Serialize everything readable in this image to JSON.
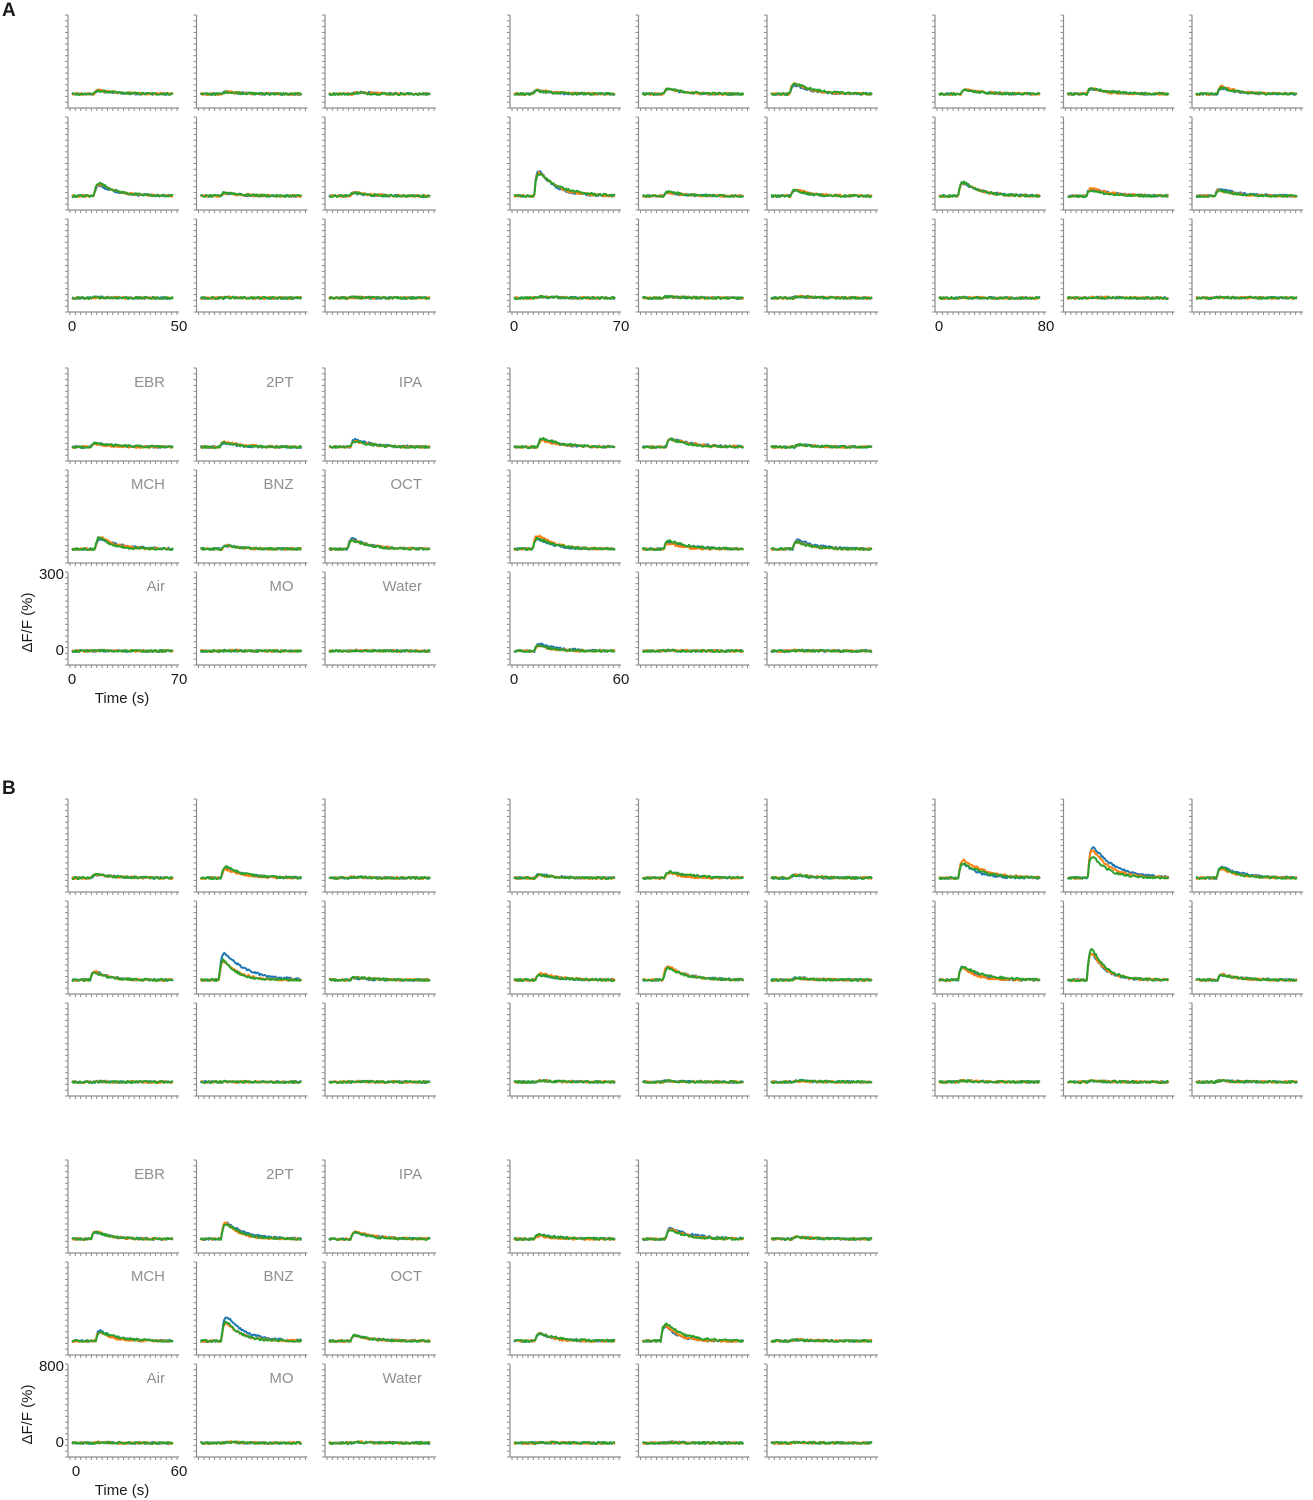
{
  "panels": [
    {
      "label": "A",
      "ylabel": "ΔF/F (%)",
      "yticks": [
        "0",
        "300"
      ],
      "ylim": [
        0,
        300
      ],
      "xlabel": "Time (s)",
      "groups": [
        {
          "xticks": [
            "0",
            "50"
          ]
        },
        {
          "xticks": [
            "0",
            "70"
          ]
        },
        {
          "xticks": [
            "0",
            "80"
          ]
        },
        {
          "xticks": [
            "0",
            "70"
          ]
        },
        {
          "xticks": [
            "0",
            "60"
          ]
        }
      ]
    },
    {
      "label": "B",
      "ylabel": "ΔF/F (%)",
      "yticks": [
        "0",
        "800"
      ],
      "ylim": [
        0,
        800
      ],
      "xlabel": "Time (s)",
      "groups": [
        {
          "xticks": []
        },
        {
          "xticks": []
        },
        {
          "xticks": []
        },
        {
          "xticks": [
            "0",
            "60"
          ]
        },
        {
          "xticks": []
        }
      ]
    }
  ],
  "odors": [
    [
      "EBR",
      "2PT",
      "IPA"
    ],
    [
      "MCH",
      "BNZ",
      "OCT"
    ],
    [
      "Air",
      "MO",
      "Water"
    ]
  ],
  "colors": {
    "trial_1": "#1f77b4",
    "trial_2": "#ff7f0e",
    "trial_3": "#2ca02c",
    "axis": "#8c8c8c",
    "odor_text": "#8f8f8f"
  },
  "chart_data": {
    "type": "line",
    "note_series": "three overlaid trials per odor (blue, orange, green)",
    "A": {
      "group_1": {
        "peaks": [
          [
            20,
            15,
            8
          ],
          [
            75,
            20,
            20
          ],
          [
            4,
            4,
            4
          ]
        ]
      },
      "group_2": {
        "peaks": [
          [
            22,
            30,
            60
          ],
          [
            150,
            25,
            35
          ],
          [
            8,
            8,
            10
          ]
        ]
      },
      "group_3": {
        "peaks": [
          [
            30,
            40,
            45
          ],
          [
            80,
            45,
            45
          ],
          [
            3,
            4,
            4
          ]
        ]
      },
      "group_4": {
        "peaks": [
          [
            20,
            30,
            40
          ],
          [
            70,
            30,
            65
          ],
          [
            3,
            3,
            3
          ]
        ]
      },
      "group_5": {
        "peaks": [
          [
            50,
            45,
            15
          ],
          [
            80,
            45,
            50
          ],
          [
            40,
            4,
            3
          ]
        ]
      }
    },
    "B": {
      "group_1": {
        "peaks": [
          [
            60,
            180,
            20
          ],
          [
            160,
            410,
            40
          ],
          [
            6,
            6,
            6
          ]
        ]
      },
      "group_2": {
        "peaks": [
          [
            60,
            120,
            50
          ],
          [
            90,
            230,
            40
          ],
          [
            20,
            20,
            20
          ]
        ]
      },
      "group_3": {
        "peaks": [
          [
            270,
            460,
            160
          ],
          [
            250,
            480,
            90
          ],
          [
            20,
            20,
            20
          ]
        ]
      },
      "group_4": {
        "peaks": [
          [
            130,
            270,
            110
          ],
          [
            160,
            380,
            110
          ],
          [
            12,
            20,
            16
          ]
        ]
      },
      "group_5": {
        "peaks": [
          [
            60,
            170,
            40
          ],
          [
            140,
            300,
            20
          ],
          [
            10,
            10,
            10
          ]
        ]
      }
    }
  }
}
